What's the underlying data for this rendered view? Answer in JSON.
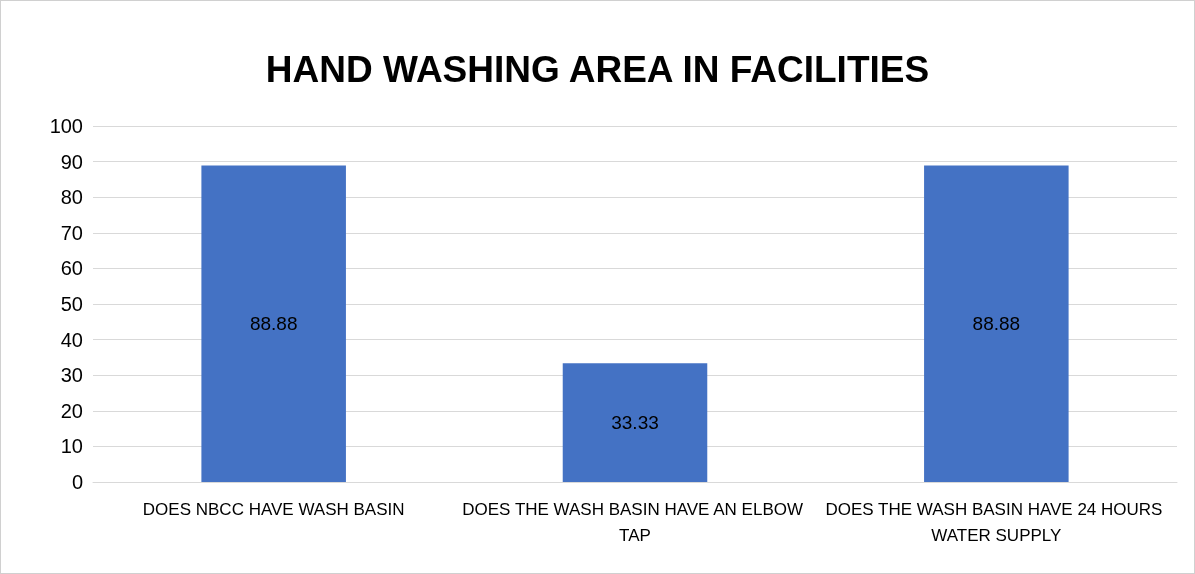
{
  "chart_data": {
    "type": "bar",
    "title": "HAND WASHING AREA IN FACILITIES",
    "categories": [
      "DOES NBCC HAVE WASH BASIN",
      "DOES THE WASH BASIN HAVE AN ELBOW TAP",
      "DOES THE WASH BASIN HAVE 24 HOURS WATER SUPPLY"
    ],
    "values": [
      88.88,
      33.33,
      88.88
    ],
    "color": "#4472c4",
    "ylim": [
      0,
      100
    ],
    "yticks": [
      0,
      10,
      20,
      30,
      40,
      50,
      60,
      70,
      80,
      90,
      100
    ],
    "grid": "y",
    "data_labels": true
  }
}
